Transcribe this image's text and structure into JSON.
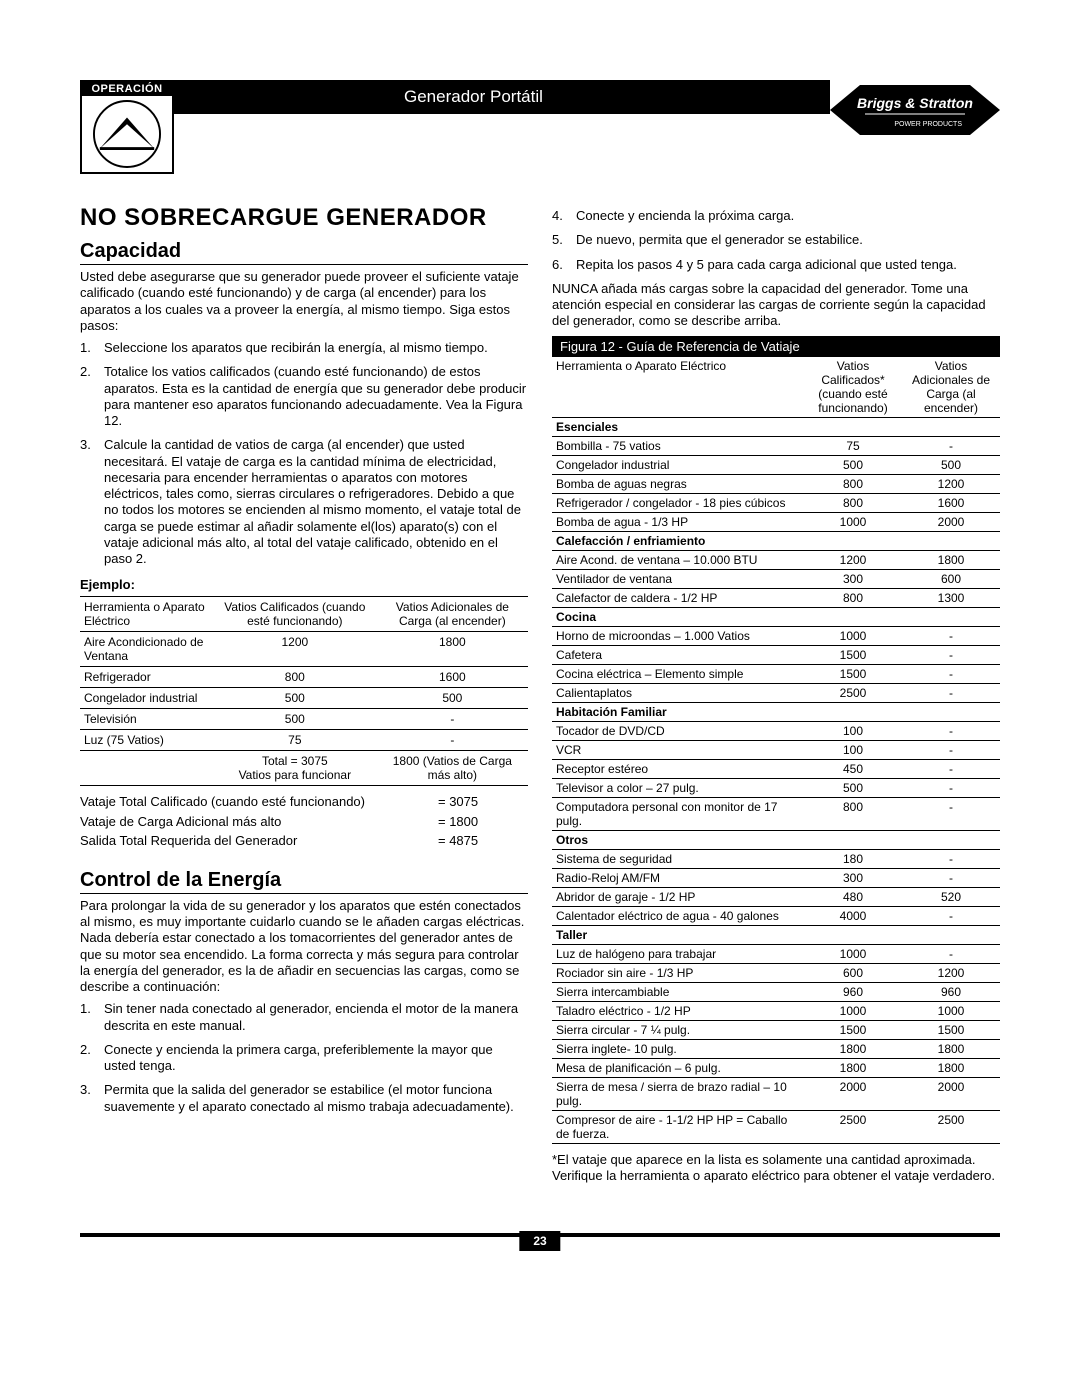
{
  "header": {
    "operacion_label": "OPERACIÓN",
    "title": "Generador Portátil",
    "brand_top": "Briggs & Stratton",
    "brand_sub": "POWER PRODUCTS"
  },
  "main_heading": "NO SOBRECARGUE GENERADOR",
  "capacity": {
    "heading": "Capacidad",
    "intro": "Usted debe asegurarse que su generador puede proveer el suficiente vataje calificado (cuando esté funcionando) y de carga (al encender) para los aparatos a los cuales va a proveer la energía, al mismo tiempo. Siga estos pasos:",
    "steps": [
      "Seleccione los aparatos que recibirán la energía, al mismo tiempo.",
      "Totalice los vatios calificados (cuando esté funcionando) de estos aparatos. Esta es la cantidad de energía que su generador debe producir para mantener eso aparatos funcionando adecuadamente. Vea la Figura 12.",
      "Calcule la cantidad de vatios de carga (al encender) que usted necesitará. El vataje de carga es la cantidad mínima de electricidad, necesaria para encender herramientas o aparatos con motores eléctricos, tales como, sierras circulares o refrigeradores. Debido a que no todos los motores se encienden al mismo momento, el vataje total de carga se puede estimar al añadir solamente el(los) aparato(s) con el vataje adicional más alto, al total del vataje calificado, obtenido en el paso 2."
    ],
    "ejemplo_label": "Ejemplo:",
    "example_table": {
      "headers": [
        "Herramienta o Aparato Eléctrico",
        "Vatios Calificados (cuando esté funcionando)",
        "Vatios Adicionales de Carga (al encender)"
      ],
      "rows": [
        [
          "Aire Acondicionado de Ventana",
          "1200",
          "1800"
        ],
        [
          "Refrigerador",
          "800",
          "1600"
        ],
        [
          "Congelador industrial",
          "500",
          "500"
        ],
        [
          "Televisión",
          "500",
          "-"
        ],
        [
          "Luz (75 Vatios)",
          "75",
          "-"
        ]
      ],
      "totals": [
        "",
        "Total = 3075\nVatios para funcionar",
        "1800 (Vatios de Carga más alto)"
      ]
    },
    "summary": [
      {
        "label": "Vataje Total Calificado (cuando esté funcionando)",
        "value": "= 3075"
      },
      {
        "label": "Vataje de Carga Adicional más alto",
        "value": "= 1800"
      },
      {
        "label": "Salida Total Requerida del Generador",
        "value": "= 4875"
      }
    ]
  },
  "energy": {
    "heading": "Control de la Energía",
    "intro": "Para prolongar la vida de su generador y los aparatos que estén conectados al mismo, es muy importante cuidarlo cuando se le añaden cargas eléctricas. Nada debería estar conectado a los tomacorrientes del generador antes de que su motor sea encendido. La forma correcta y más segura para controlar la energía del generador, es la de añadir en secuencias las cargas, como se describe a continuación:",
    "steps_left": [
      "Sin tener nada conectado al generador, encienda el motor de la manera descrita en este manual.",
      "Conecte y encienda la primera carga, preferiblemente la mayor que usted tenga.",
      "Permita que la salida del generador se estabilice (el motor funciona suavemente y el aparato conectado al mismo trabaja adecuadamente)."
    ],
    "steps_right": [
      "Conecte y encienda la próxima carga.",
      "De nuevo, permita que el generador se estabilice.",
      "Repita los pasos 4 y 5 para cada carga adicional que usted tenga."
    ],
    "warning": "NUNCA añada más cargas sobre la capacidad del generador. Tome una atención especial en considerar las cargas de corriente según la capacidad del generador, como se describe arriba."
  },
  "figure": {
    "title": "Figura 12 - Guía de Referencia de Vatiaje",
    "col_tool": "Herramienta o Aparato Eléctrico",
    "col_rated": "Vatios Calificados* (cuando esté funcionando)",
    "col_surge": "Vatios Adicionales de Carga (al encender)",
    "sections": [
      {
        "name": "Esenciales",
        "rows": [
          [
            "Bombilla - 75 vatios",
            "75",
            "-"
          ],
          [
            "Congelador industrial",
            "500",
            "500"
          ],
          [
            "Bomba de aguas negras",
            "800",
            "1200"
          ],
          [
            "Refrigerador / congelador - 18 pies cúbicos",
            "800",
            "1600"
          ],
          [
            "Bomba de agua - 1/3 HP",
            "1000",
            "2000"
          ]
        ]
      },
      {
        "name": "Calefacción / enfriamiento",
        "rows": [
          [
            "Aire Acond. de ventana – 10.000 BTU",
            "1200",
            "1800"
          ],
          [
            "Ventilador de ventana",
            "300",
            "600"
          ],
          [
            "Calefactor de caldera - 1/2 HP",
            "800",
            "1300"
          ]
        ]
      },
      {
        "name": "Cocina",
        "rows": [
          [
            "Horno de microondas – 1.000 Vatios",
            "1000",
            "-"
          ],
          [
            "Cafetera",
            "1500",
            "-"
          ],
          [
            "Cocina eléctrica – Elemento simple",
            "1500",
            "-"
          ],
          [
            "Calientaplatos",
            "2500",
            "-"
          ]
        ]
      },
      {
        "name": "Habitación Familiar",
        "rows": [
          [
            "Tocador de DVD/CD",
            "100",
            "-"
          ],
          [
            "VCR",
            "100",
            "-"
          ],
          [
            "Receptor estéreo",
            "450",
            "-"
          ],
          [
            "Televisor a color – 27 pulg.",
            "500",
            "-"
          ],
          [
            "Computadora personal con monitor de 17 pulg.",
            "800",
            "-"
          ]
        ]
      },
      {
        "name": "Otros",
        "rows": [
          [
            "Sistema de seguridad",
            "180",
            "-"
          ],
          [
            "Radio-Reloj AM/FM",
            "300",
            "-"
          ],
          [
            "Abridor de garaje - 1/2 HP",
            "480",
            "520"
          ],
          [
            "Calentador eléctrico de agua - 40 galones",
            "4000",
            "-"
          ]
        ]
      },
      {
        "name": "Taller",
        "rows": [
          [
            "Luz de halógeno para trabajar",
            "1000",
            "-"
          ],
          [
            "Rociador sin aire - 1/3 HP",
            "600",
            "1200"
          ],
          [
            "Sierra intercambiable",
            "960",
            "960"
          ],
          [
            "Taladro eléctrico - 1/2 HP",
            "1000",
            "1000"
          ],
          [
            "Sierra circular - 7 ¼ pulg.",
            "1500",
            "1500"
          ],
          [
            "Sierra inglete- 10 pulg.",
            "1800",
            "1800"
          ],
          [
            "Mesa de planificación – 6 pulg.",
            "1800",
            "1800"
          ],
          [
            "Sierra de mesa / sierra de brazo radial – 10 pulg.",
            "2000",
            "2000"
          ],
          [
            "Compresor de aire - 1-1/2 HP HP = Caballo de fuerza.",
            "2500",
            "2500"
          ]
        ]
      }
    ],
    "footnote": "*El vataje que aparece en la lista es solamente una cantidad aproximada. Verifique la herramienta o aparato eléctrico para obtener el vataje verdadero."
  },
  "page_number": "23"
}
